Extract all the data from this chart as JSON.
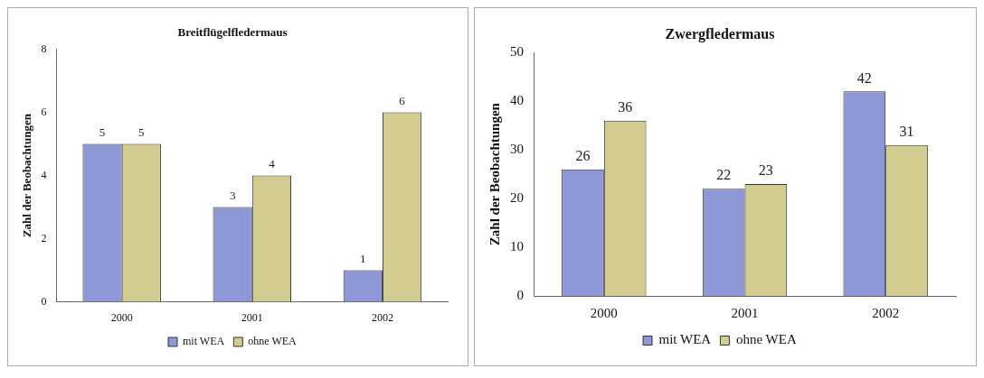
{
  "chart_data": [
    {
      "type": "bar",
      "title": "Breitflügelfledermaus",
      "ylabel": "Zahl der Beobachtungen",
      "categories": [
        "2000",
        "2001",
        "2002"
      ],
      "series": [
        {
          "name": "mit WEA",
          "color": "#8e98d6",
          "values": [
            5,
            3,
            1
          ]
        },
        {
          "name": "ohne WEA",
          "color": "#d2cc90",
          "values": [
            5,
            4,
            6
          ]
        }
      ],
      "ylim": [
        0,
        8
      ],
      "yticks": [
        0,
        2,
        4,
        6,
        8
      ],
      "grid": false,
      "legend": "bottom",
      "data_labels": true
    },
    {
      "type": "bar",
      "title": "Zwergfledermaus",
      "ylabel": "Zahl der Beobachtungen",
      "categories": [
        "2000",
        "2001",
        "2002"
      ],
      "series": [
        {
          "name": "mit WEA",
          "color": "#8e98d6",
          "values": [
            26,
            22,
            42
          ]
        },
        {
          "name": "ohne WEA",
          "color": "#d2cc90",
          "values": [
            36,
            23,
            31
          ]
        }
      ],
      "ylim": [
        0,
        50
      ],
      "yticks": [
        0,
        10,
        20,
        30,
        40,
        50
      ],
      "grid": false,
      "legend": "bottom",
      "data_labels": true
    }
  ]
}
